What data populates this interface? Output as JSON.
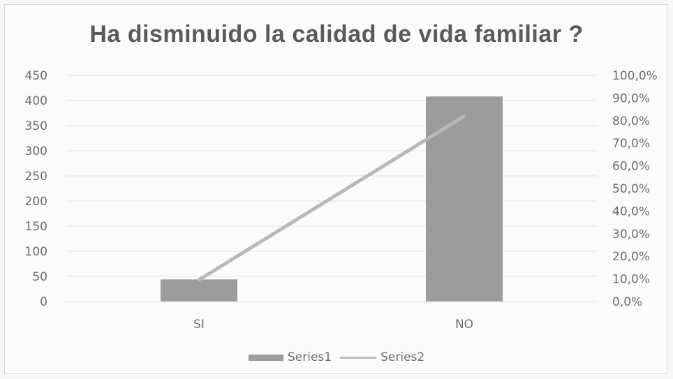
{
  "chart_data": {
    "type": "bar",
    "title": "Ha disminuido la calidad de vida familiar ?",
    "categories": [
      "SI",
      "NO"
    ],
    "series": [
      {
        "name": "Series1",
        "type": "bar",
        "axis": "left",
        "values": [
          44,
          408
        ]
      },
      {
        "name": "Series2",
        "type": "line",
        "axis": "right",
        "values": [
          0.096,
          0.82
        ]
      }
    ],
    "y_left": {
      "ylim": [
        0,
        450
      ],
      "ticks": [
        "450",
        "400",
        "350",
        "300",
        "250",
        "200",
        "150",
        "100",
        "50",
        "0"
      ]
    },
    "y_right": {
      "ylim": [
        0,
        1
      ],
      "ticks": [
        "100,0%",
        "90,0%",
        "80,0%",
        "70,0%",
        "60,0%",
        "50,0%",
        "40,0%",
        "30,0%",
        "20,0%",
        "10,0%",
        "0,0%"
      ]
    },
    "grid": true,
    "legend_position": "bottom",
    "colors": {
      "bar": "#9c9c9c",
      "line": "#b8b8b8",
      "grid": "#e3e3e3",
      "text": "#6d6d6d"
    }
  }
}
